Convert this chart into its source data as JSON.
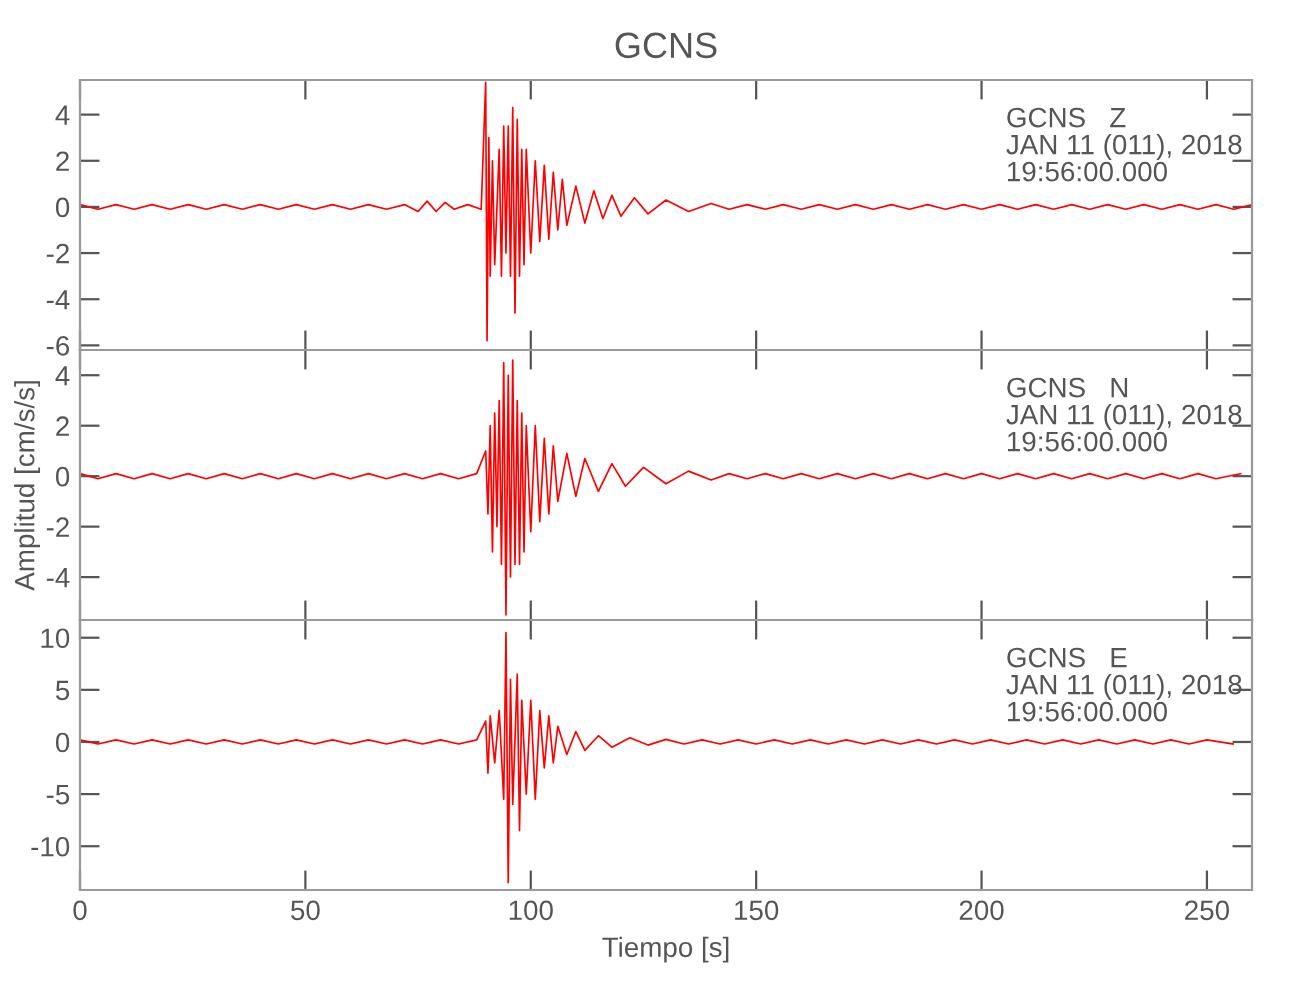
{
  "chart_data": [
    {
      "type": "line",
      "title": "GCNS",
      "xlim": [
        0,
        260
      ],
      "ylim": [
        -6.2,
        5.5
      ],
      "yticks": [
        -6,
        -4,
        -2,
        0,
        2,
        4
      ],
      "xticks": [
        0,
        50,
        100,
        150,
        200,
        250
      ],
      "tick_labels": "y",
      "grid": false,
      "marker": "none",
      "line_style": "solid",
      "annotations": [
        "GCNS   Z",
        "JAN 11 (011), 2018",
        "19:56:00.000"
      ],
      "series": [
        {
          "color": "#ff0000",
          "x": [
            0,
            4,
            8,
            12,
            16,
            20,
            24,
            28,
            32,
            36,
            40,
            44,
            48,
            52,
            56,
            60,
            64,
            68,
            72,
            75,
            77,
            79,
            81,
            83,
            86,
            89,
            90,
            90.3,
            90.7,
            91,
            91.5,
            92,
            93,
            93.5,
            94,
            94.5,
            95,
            95.5,
            96,
            96.5,
            97,
            97.5,
            98,
            98.5,
            99,
            100,
            101,
            102,
            103,
            104,
            105,
            106,
            107,
            108,
            110,
            112,
            114,
            116,
            118,
            120,
            123,
            126,
            130,
            135,
            140,
            144,
            148,
            152,
            156,
            160,
            164,
            168,
            172,
            176,
            180,
            184,
            188,
            192,
            196,
            200,
            204,
            208,
            212,
            216,
            220,
            224,
            228,
            232,
            236,
            240,
            244,
            248,
            252,
            256,
            260
          ],
          "values": [
            0.1,
            -0.1,
            0.1,
            -0.1,
            0.1,
            -0.1,
            0.1,
            -0.1,
            0.1,
            -0.1,
            0.1,
            -0.1,
            0.1,
            -0.1,
            0.1,
            -0.1,
            0.1,
            -0.1,
            0.1,
            -0.2,
            0.25,
            -0.2,
            0.2,
            -0.1,
            0.1,
            -0.1,
            5.4,
            -5.8,
            3,
            -3,
            2,
            -2.5,
            2.5,
            -3,
            3.5,
            -2,
            3.5,
            -3,
            4.3,
            -4.6,
            3.8,
            -3,
            2.5,
            -2.5,
            2.5,
            -2,
            2,
            -1.5,
            1.8,
            -1.4,
            1.5,
            -1,
            1.2,
            -0.8,
            0.9,
            -0.7,
            0.7,
            -0.5,
            0.5,
            -0.4,
            0.4,
            -0.3,
            0.3,
            -0.2,
            0.15,
            -0.1,
            0.1,
            -0.1,
            0.1,
            -0.1,
            0.1,
            -0.1,
            0.1,
            -0.1,
            0.1,
            -0.1,
            0.1,
            -0.1,
            0.1,
            -0.1,
            0.1,
            -0.1,
            0.1,
            -0.1,
            0.1,
            -0.1,
            0.1,
            -0.1,
            0.1,
            -0.1,
            0.1,
            -0.1,
            0.1,
            -0.1,
            0.1
          ]
        }
      ]
    },
    {
      "type": "line",
      "ylabel": "Amplitud [cm/s/s]",
      "xlim": [
        0,
        260
      ],
      "ylim": [
        -5.7,
        5
      ],
      "yticks": [
        -4,
        -2,
        0,
        2,
        4
      ],
      "xticks": [
        0,
        50,
        100,
        150,
        200,
        250
      ],
      "tick_labels": "y",
      "grid": false,
      "marker": "none",
      "line_style": "solid",
      "annotations": [
        "GCNS   N",
        "JAN 11 (011), 2018",
        "19:56:00.000"
      ],
      "series": [
        {
          "color": "#ff0000",
          "x": [
            0,
            4,
            8,
            12,
            16,
            20,
            24,
            28,
            32,
            36,
            40,
            44,
            48,
            52,
            56,
            60,
            64,
            68,
            72,
            76,
            80,
            84,
            88,
            90,
            90.5,
            91,
            91.5,
            92,
            92.5,
            93,
            93.5,
            94,
            94.5,
            95,
            95.5,
            96,
            96.5,
            97,
            97.5,
            98,
            98.5,
            99,
            100,
            101,
            102,
            103,
            104,
            105,
            106,
            108,
            110,
            112,
            115,
            118,
            121,
            125,
            130,
            135,
            140,
            144,
            148,
            152,
            156,
            160,
            164,
            168,
            172,
            176,
            180,
            184,
            188,
            192,
            196,
            200,
            204,
            208,
            212,
            216,
            220,
            224,
            228,
            232,
            236,
            240,
            244,
            248,
            252,
            257.5
          ],
          "values": [
            0.1,
            -0.1,
            0.1,
            -0.1,
            0.1,
            -0.1,
            0.1,
            -0.1,
            0.1,
            -0.1,
            0.1,
            -0.1,
            0.1,
            -0.1,
            0.1,
            -0.1,
            0.1,
            -0.1,
            0.1,
            -0.1,
            0.1,
            -0.1,
            0.1,
            1,
            -1.5,
            2,
            -3,
            2.5,
            -2,
            3,
            -3.5,
            4.5,
            -5.5,
            4,
            -4,
            4.6,
            -3.5,
            3,
            -3.5,
            2.5,
            -3,
            2,
            -2.2,
            2,
            -1.8,
            1.5,
            -1.5,
            1.2,
            -1,
            0.9,
            -0.8,
            0.7,
            -0.6,
            0.5,
            -0.4,
            0.35,
            -0.3,
            0.2,
            -0.15,
            0.1,
            -0.1,
            0.1,
            -0.1,
            0.1,
            -0.1,
            0.1,
            -0.1,
            0.1,
            -0.1,
            0.1,
            -0.1,
            0.1,
            -0.1,
            0.1,
            -0.1,
            0.1,
            -0.1,
            0.1,
            -0.1,
            0.1,
            -0.1,
            0.1,
            -0.1,
            0.1,
            -0.1,
            0.1,
            -0.1,
            0.1
          ]
        }
      ]
    },
    {
      "type": "line",
      "xlabel": "Tiempo [s]",
      "xlim": [
        0,
        260
      ],
      "ylim": [
        -14.2,
        11.7
      ],
      "yticks": [
        -10,
        -5,
        0,
        5,
        10
      ],
      "xticks": [
        0,
        50,
        100,
        150,
        200,
        250
      ],
      "grid": false,
      "marker": "none",
      "line_style": "solid",
      "annotations": [
        "GCNS   E",
        "JAN 11 (011), 2018",
        "19:56:00.000"
      ],
      "series": [
        {
          "color": "#ff0000",
          "x": [
            0,
            4,
            8,
            12,
            16,
            20,
            24,
            28,
            32,
            36,
            40,
            44,
            48,
            52,
            56,
            60,
            64,
            68,
            72,
            76,
            80,
            84,
            88,
            90,
            90.5,
            91,
            92,
            93,
            94,
            94.5,
            95,
            95.5,
            96,
            97,
            97.5,
            98,
            99,
            100,
            101,
            102,
            103,
            104,
            105,
            106,
            108,
            110,
            112,
            115,
            118,
            122,
            126,
            130,
            134,
            138,
            142,
            146,
            150,
            154,
            158,
            162,
            166,
            170,
            174,
            178,
            182,
            186,
            190,
            194,
            198,
            202,
            206,
            210,
            214,
            218,
            222,
            226,
            230,
            234,
            238,
            242,
            246,
            250,
            255.8
          ],
          "values": [
            0.2,
            -0.2,
            0.2,
            -0.2,
            0.2,
            -0.2,
            0.2,
            -0.2,
            0.2,
            -0.2,
            0.2,
            -0.2,
            0.2,
            -0.2,
            0.2,
            -0.2,
            0.2,
            -0.2,
            0.2,
            -0.2,
            0.2,
            -0.2,
            0.2,
            2,
            -3,
            2.5,
            -2,
            3,
            -5.5,
            10.5,
            -13.5,
            6,
            -6,
            6.5,
            -8.5,
            4,
            -5,
            4,
            -5.5,
            3,
            -2.5,
            2.5,
            -2,
            1.5,
            -1.2,
            1,
            -0.8,
            0.6,
            -0.5,
            0.4,
            -0.3,
            0.25,
            -0.2,
            0.2,
            -0.2,
            0.2,
            -0.2,
            0.2,
            -0.2,
            0.2,
            -0.2,
            0.2,
            -0.2,
            0.2,
            -0.2,
            0.2,
            -0.2,
            0.2,
            -0.2,
            0.2,
            -0.2,
            0.2,
            -0.2,
            0.2,
            -0.2,
            0.2,
            -0.2,
            0.2,
            -0.2,
            0.2,
            -0.2,
            0.2,
            -0.2
          ]
        }
      ]
    }
  ]
}
